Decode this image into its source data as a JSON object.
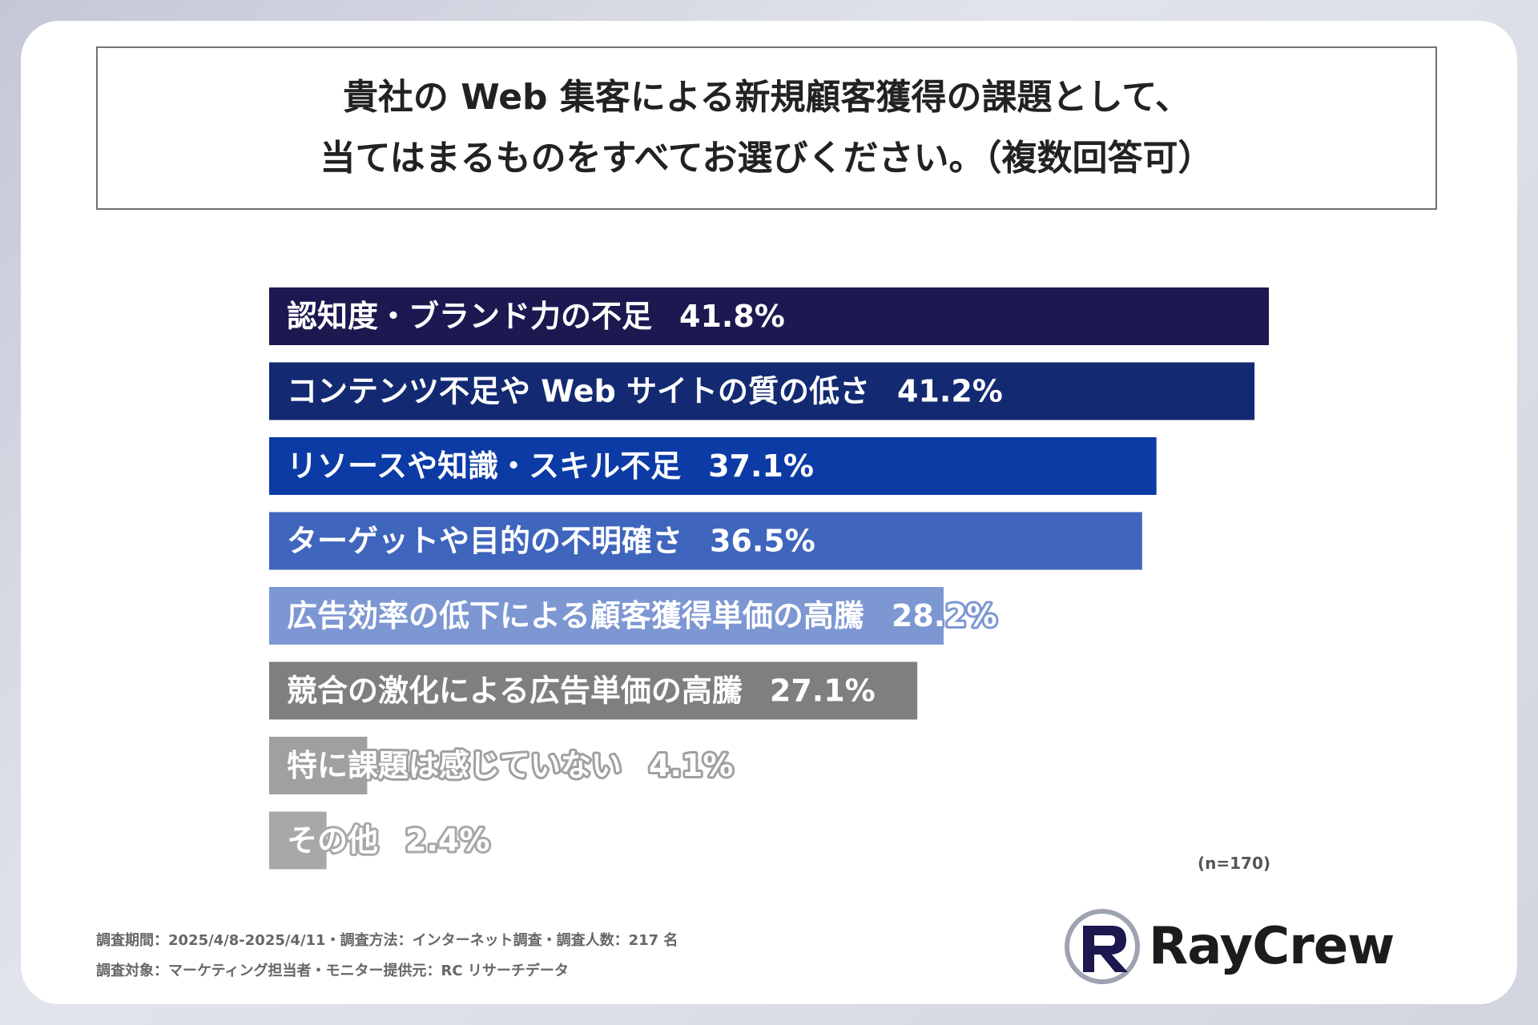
{
  "title": {
    "line1": "貴社の Web 集客による新規顧客獲得の課題として、",
    "line2": "当てはまるものをすべてお選びください。（複数回答可）"
  },
  "chart_data": {
    "type": "bar",
    "orientation": "horizontal",
    "unit": "%",
    "categories": [
      "認知度・ブランド力の不足",
      "コンテンツ不足や Web サイトの質の低さ",
      "リソースや知識・スキル不足",
      "ターゲットや目的の不明確さ",
      "広告効率の低下による顧客獲得単価の高騰",
      "競合の激化による広告単価の高騰",
      "特に課題は感じていない",
      "その他"
    ],
    "values": [
      41.8,
      41.2,
      37.1,
      36.5,
      28.2,
      27.1,
      4.1,
      2.4
    ],
    "value_labels": [
      "41.8%",
      "41.2%",
      "37.1%",
      "36.5%",
      "28.2%",
      "27.1%",
      "4.1%",
      "2.4%"
    ],
    "colors": [
      "#1c1850",
      "#132a72",
      "#0c3ba6",
      "#3f65bd",
      "#7d97d3",
      "#7f7f7f",
      "#a0a0a0",
      "#a8a8a8"
    ],
    "xlim": [
      0,
      42
    ],
    "grid": false,
    "legend": "none"
  },
  "sample_size": "(n=170)",
  "footnotes": [
    "調査期間：2025/4/8-2025/4/11・調査方法：インターネット調査・調査人数：217 名",
    "調査対象：マーケティング担当者・モニター提供元：RC リサーチデータ"
  ],
  "logo": {
    "text": "RayCrew",
    "mark_color": "#1c1850",
    "mark_accent": "#9ea3b0"
  }
}
